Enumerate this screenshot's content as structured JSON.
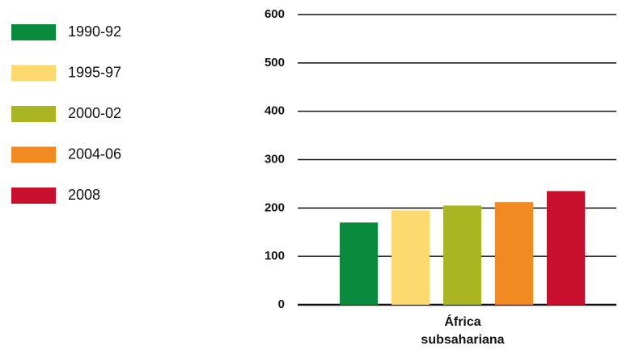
{
  "chart_data": {
    "type": "bar",
    "categories": [
      "África subsahariana"
    ],
    "series": [
      {
        "name": "1990-92",
        "color": "#0a8a3c",
        "values": [
          170
        ]
      },
      {
        "name": "1995-97",
        "color": "#fdd96f",
        "values": [
          195
        ]
      },
      {
        "name": "2000-02",
        "color": "#a9b521",
        "values": [
          205
        ]
      },
      {
        "name": "2004-06",
        "color": "#f28a22",
        "values": [
          212
        ]
      },
      {
        "name": "2008",
        "color": "#c8102e",
        "values": [
          235
        ]
      }
    ],
    "ylim": [
      0,
      600
    ],
    "yticks": [
      0,
      100,
      200,
      300,
      400,
      500,
      600
    ],
    "grid": true,
    "legend": "left"
  }
}
